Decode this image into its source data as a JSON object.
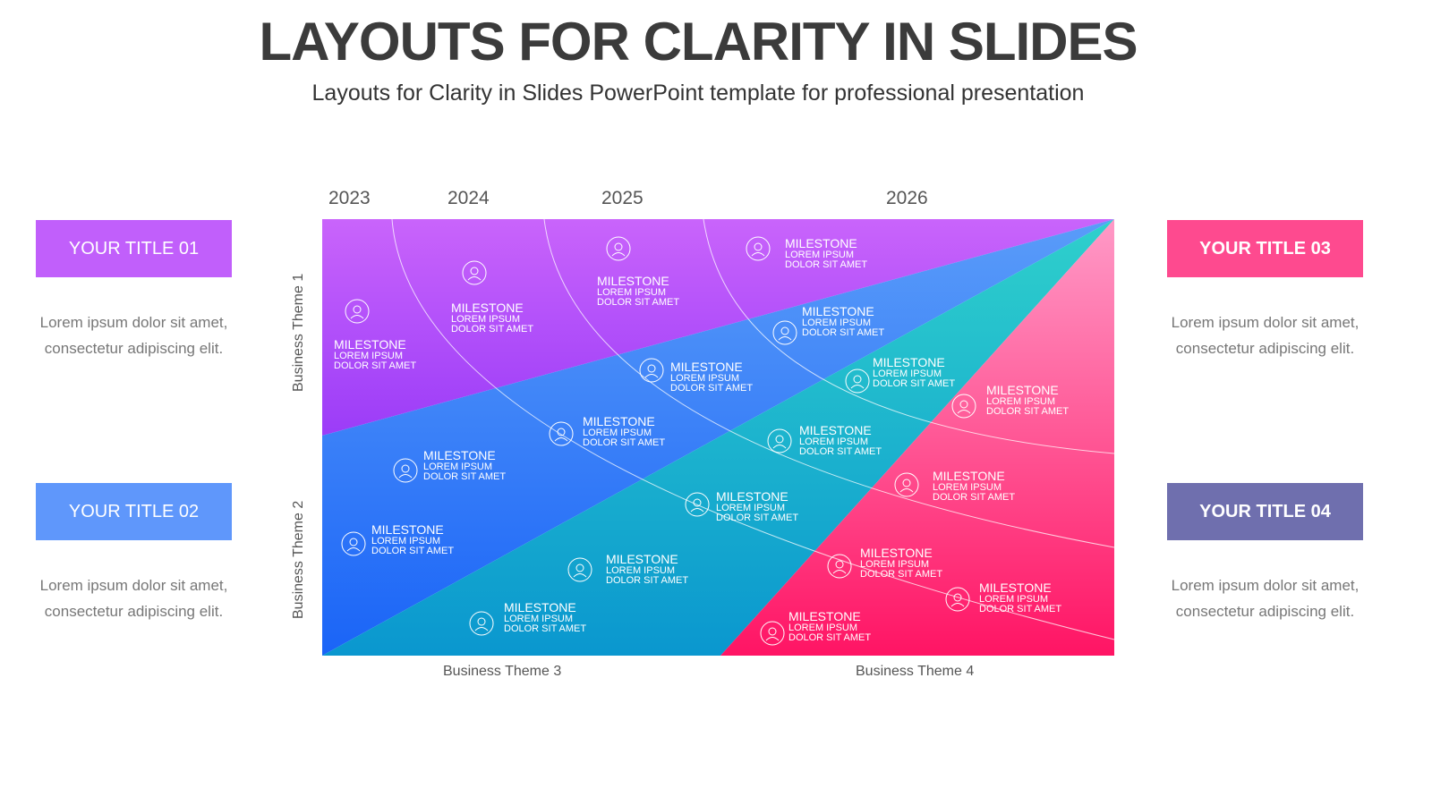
{
  "title": "LAYOUTS FOR CLARITY IN SLIDES",
  "subtitle": "Layouts for Clarity in Slides PowerPoint template for professional presentation",
  "years": [
    "2023",
    "2024",
    "2025",
    "2026"
  ],
  "themes": [
    "Business Theme 1",
    "Business Theme 2",
    "Business Theme 3",
    "Business Theme 4"
  ],
  "cards": [
    {
      "title": "YOUR TITLE 01",
      "text": "Lorem ipsum dolor sit amet, consectetur adipiscing elit.",
      "color": "#c15ffb"
    },
    {
      "title": "YOUR TITLE 02",
      "text": "Lorem ipsum dolor sit amet, consectetur adipiscing elit.",
      "color": "#5f97fb"
    },
    {
      "title": "YOUR TITLE 03",
      "text": "Lorem ipsum dolor sit amet, consectetur adipiscing elit.",
      "color": "#fe4a8f"
    },
    {
      "title": "YOUR TITLE 04",
      "text": "Lorem ipsum dolor sit amet, consectetur adipiscing elit.",
      "color": "#6f6fae"
    }
  ],
  "milestone": {
    "heading": "MILESTONE",
    "line1": "LOREM IPSUM",
    "line2": "DOLOR SIT AMET"
  },
  "milestone_icons": [
    "cloud-icon",
    "cloud-sync-icon",
    "cloud-globe-icon",
    "cloud-lock-icon",
    "user-circle-icon",
    "user-icon",
    "meeting-icon",
    "network-icon",
    "person-icon",
    "dollar-icon",
    "medal-icon",
    "gear-icon",
    "award-icon",
    "nose-icon",
    "globe-icon",
    "navigation-icon",
    "tools-icon",
    "dollar-gear-icon",
    "briefcase-icon"
  ]
}
